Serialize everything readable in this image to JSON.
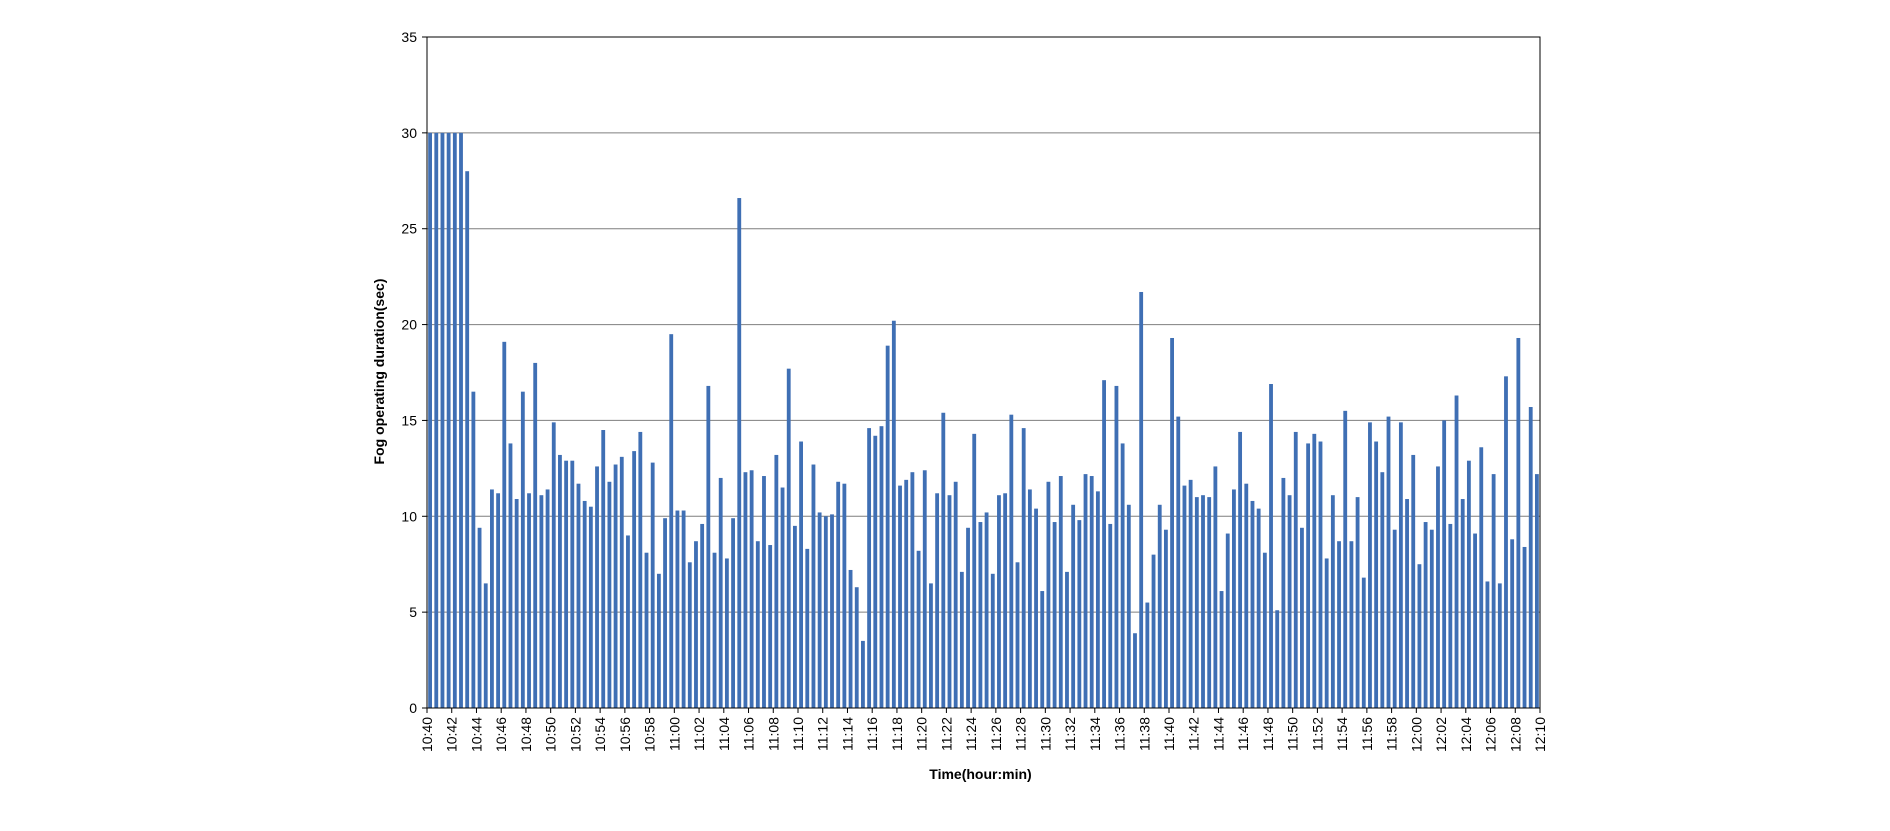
{
  "chart_data": {
    "type": "bar",
    "title": "",
    "xlabel": "Time(hour:min)",
    "ylabel": "Fog operating duration(sec)",
    "ylim": [
      0,
      35
    ],
    "yticks": [
      0,
      5,
      10,
      15,
      20,
      25,
      30,
      35
    ],
    "grid": "horizontal",
    "legend": "none",
    "x_tick_labels": [
      "10:40",
      "10:42",
      "10:44",
      "10:46",
      "10:48",
      "10:50",
      "10:52",
      "10:54",
      "10:56",
      "10:58",
      "11:00",
      "11:02",
      "11:04",
      "11:06",
      "11:08",
      "11:10",
      "11:12",
      "11:14",
      "11:16",
      "11:18",
      "11:20",
      "11:22",
      "11:24",
      "11:26",
      "11:28",
      "11:30",
      "11:32",
      "11:34",
      "11:36",
      "11:38",
      "11:40",
      "11:42",
      "11:44",
      "11:46",
      "11:48",
      "11:50",
      "11:52",
      "11:54",
      "11:56",
      "11:58",
      "12:00",
      "12:02",
      "12:04",
      "12:06",
      "12:08",
      "12:10"
    ],
    "bar_color": "#3f6fb4",
    "values": [
      30,
      30,
      30,
      30,
      30,
      30,
      28,
      16.5,
      9.4,
      6.5,
      11.4,
      11.2,
      19.1,
      13.8,
      10.9,
      16.5,
      11.2,
      18,
      11.1,
      11.4,
      14.9,
      13.2,
      12.9,
      12.9,
      11.7,
      10.8,
      10.5,
      12.6,
      14.5,
      11.8,
      12.7,
      13.1,
      9,
      13.4,
      14.4,
      8.1,
      12.8,
      7,
      9.9,
      19.5,
      10.3,
      10.3,
      7.6,
      8.7,
      9.6,
      16.8,
      8.1,
      12,
      7.8,
      9.9,
      26.6,
      12.3,
      12.4,
      8.7,
      12.1,
      8.5,
      13.2,
      11.5,
      17.7,
      9.5,
      13.9,
      8.3,
      12.7,
      10.2,
      10,
      10.1,
      11.8,
      11.7,
      7.2,
      6.3,
      3.5,
      14.6,
      14.2,
      14.7,
      18.9,
      20.2,
      11.6,
      11.9,
      12.3,
      8.2,
      12.4,
      6.5,
      11.2,
      15.4,
      11.1,
      11.8,
      7.1,
      9.4,
      14.3,
      9.7,
      10.2,
      7,
      11.1,
      11.2,
      15.3,
      7.6,
      14.6,
      11.4,
      10.4,
      6.1,
      11.8,
      9.7,
      12.1,
      7.1,
      10.6,
      9.8,
      12.2,
      12.1,
      11.3,
      17.1,
      9.6,
      16.8,
      13.8,
      10.6,
      3.9,
      21.7,
      5.5,
      8,
      10.6,
      9.3,
      19.3,
      15.2,
      11.6,
      11.9,
      11,
      11.1,
      11,
      12.6,
      6.1,
      9.1,
      11.4,
      14.4,
      11.7,
      10.8,
      10.4,
      8.1,
      16.9,
      5.1,
      12,
      11.1,
      14.4,
      9.4,
      13.8,
      14.3,
      13.9,
      7.8,
      11.1,
      8.7,
      15.5,
      8.7,
      11,
      6.8,
      14.9,
      13.9,
      12.3,
      15.2,
      9.3,
      14.9,
      10.9,
      13.2,
      7.5,
      9.7,
      9.3,
      12.6,
      15,
      9.6,
      16.3,
      10.9,
      12.9,
      9.1,
      13.6,
      6.6,
      12.2,
      6.5,
      17.3,
      8.8,
      19.3,
      8.4,
      15.7,
      12.2
    ]
  }
}
